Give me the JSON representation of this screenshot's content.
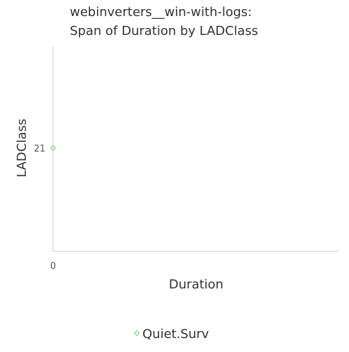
{
  "chart_data": {
    "type": "scatter",
    "title": "webinverters__win-with-logs:\nSpan of Duration by LADClass",
    "xlabel": "Duration",
    "ylabel": "LADClass",
    "x_ticks": [
      "0"
    ],
    "y_ticks": [
      "21"
    ],
    "series": [
      {
        "name": "Quiet.Surv",
        "color": "#9ed99a",
        "marker": "diamond-open",
        "points": [
          {
            "x": 0,
            "y": 21
          }
        ]
      }
    ],
    "legend_position": "bottom-center",
    "grid": false
  }
}
